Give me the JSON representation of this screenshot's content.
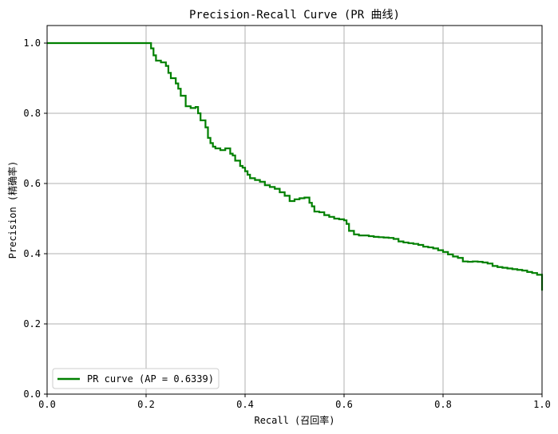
{
  "chart_data": {
    "type": "line",
    "title": "Precision-Recall Curve (PR 曲线)",
    "xlabel": "Recall (召回率)",
    "ylabel": "Precision (精确率)",
    "xlim": [
      0,
      1
    ],
    "ylim": [
      0,
      1.05
    ],
    "grid": true,
    "legend_position": "lower-left",
    "x_ticks": [
      "0.0",
      "0.2",
      "0.4",
      "0.6",
      "0.8",
      "1.0"
    ],
    "y_ticks": [
      "0.0",
      "0.2",
      "0.4",
      "0.6",
      "0.8",
      "1.0"
    ],
    "series": [
      {
        "name": "PR curve (AP = 0.6339)",
        "color": "#008000",
        "x": [
          0.0,
          0.205,
          0.21,
          0.215,
          0.22,
          0.23,
          0.24,
          0.245,
          0.25,
          0.26,
          0.265,
          0.27,
          0.28,
          0.29,
          0.3,
          0.305,
          0.31,
          0.32,
          0.325,
          0.33,
          0.335,
          0.34,
          0.35,
          0.36,
          0.37,
          0.375,
          0.38,
          0.39,
          0.395,
          0.4,
          0.405,
          0.41,
          0.42,
          0.43,
          0.44,
          0.45,
          0.46,
          0.47,
          0.48,
          0.49,
          0.5,
          0.51,
          0.52,
          0.525,
          0.53,
          0.535,
          0.54,
          0.55,
          0.56,
          0.57,
          0.58,
          0.59,
          0.6,
          0.605,
          0.61,
          0.62,
          0.63,
          0.64,
          0.65,
          0.66,
          0.67,
          0.68,
          0.69,
          0.7,
          0.71,
          0.72,
          0.73,
          0.74,
          0.75,
          0.76,
          0.77,
          0.78,
          0.79,
          0.8,
          0.81,
          0.82,
          0.83,
          0.84,
          0.85,
          0.86,
          0.87,
          0.88,
          0.89,
          0.9,
          0.91,
          0.92,
          0.93,
          0.94,
          0.95,
          0.96,
          0.97,
          0.98,
          0.99,
          1.0,
          1.0
        ],
        "y": [
          1.0,
          1.0,
          0.985,
          0.965,
          0.95,
          0.945,
          0.935,
          0.915,
          0.9,
          0.885,
          0.87,
          0.85,
          0.82,
          0.815,
          0.818,
          0.8,
          0.78,
          0.76,
          0.73,
          0.715,
          0.705,
          0.7,
          0.695,
          0.7,
          0.685,
          0.68,
          0.665,
          0.65,
          0.645,
          0.635,
          0.625,
          0.615,
          0.61,
          0.605,
          0.595,
          0.59,
          0.585,
          0.575,
          0.565,
          0.55,
          0.555,
          0.558,
          0.56,
          0.56,
          0.545,
          0.535,
          0.52,
          0.518,
          0.51,
          0.505,
          0.5,
          0.498,
          0.495,
          0.485,
          0.465,
          0.455,
          0.452,
          0.452,
          0.45,
          0.448,
          0.447,
          0.446,
          0.445,
          0.442,
          0.435,
          0.432,
          0.43,
          0.428,
          0.425,
          0.42,
          0.418,
          0.415,
          0.41,
          0.405,
          0.398,
          0.392,
          0.388,
          0.378,
          0.377,
          0.378,
          0.377,
          0.375,
          0.372,
          0.365,
          0.362,
          0.36,
          0.358,
          0.356,
          0.354,
          0.352,
          0.348,
          0.345,
          0.34,
          0.335,
          0.295
        ]
      }
    ]
  }
}
